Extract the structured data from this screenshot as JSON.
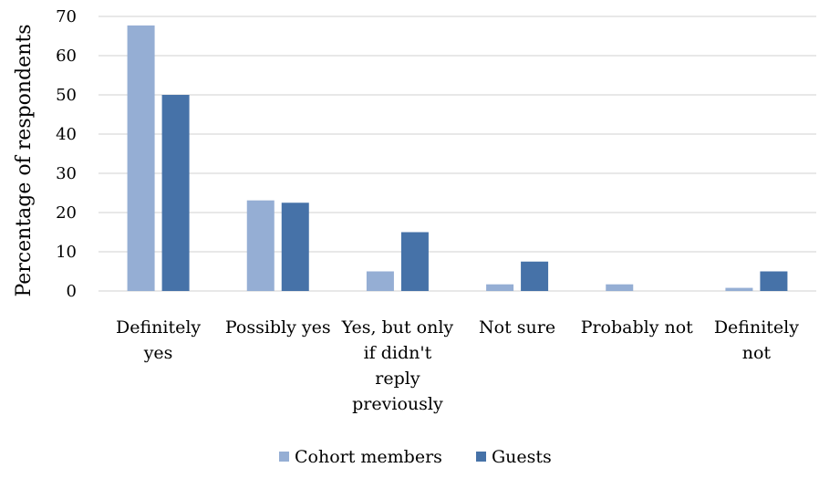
{
  "chart_data": {
    "type": "bar",
    "title": "",
    "xlabel": "",
    "ylabel": "Percentage of respondents",
    "ylim": [
      0,
      70
    ],
    "yticks": [
      0,
      10,
      20,
      30,
      40,
      50,
      60,
      70
    ],
    "grid": true,
    "legend_position": "bottom",
    "categories": [
      [
        "Definitely",
        "yes"
      ],
      [
        "Possibly yes"
      ],
      [
        "Yes, but only",
        "if didn't",
        "reply",
        "previously"
      ],
      [
        "Not sure"
      ],
      [
        "Probably not"
      ],
      [
        "Definitely",
        "not"
      ]
    ],
    "series": [
      {
        "name": "Cohort members",
        "color": "#95aed4",
        "values": [
          67.7,
          23.1,
          5.0,
          1.7,
          1.7,
          0.8
        ]
      },
      {
        "name": "Guests",
        "color": "#4672a8",
        "values": [
          50.0,
          22.5,
          15.0,
          7.5,
          0,
          5.0
        ]
      }
    ]
  }
}
